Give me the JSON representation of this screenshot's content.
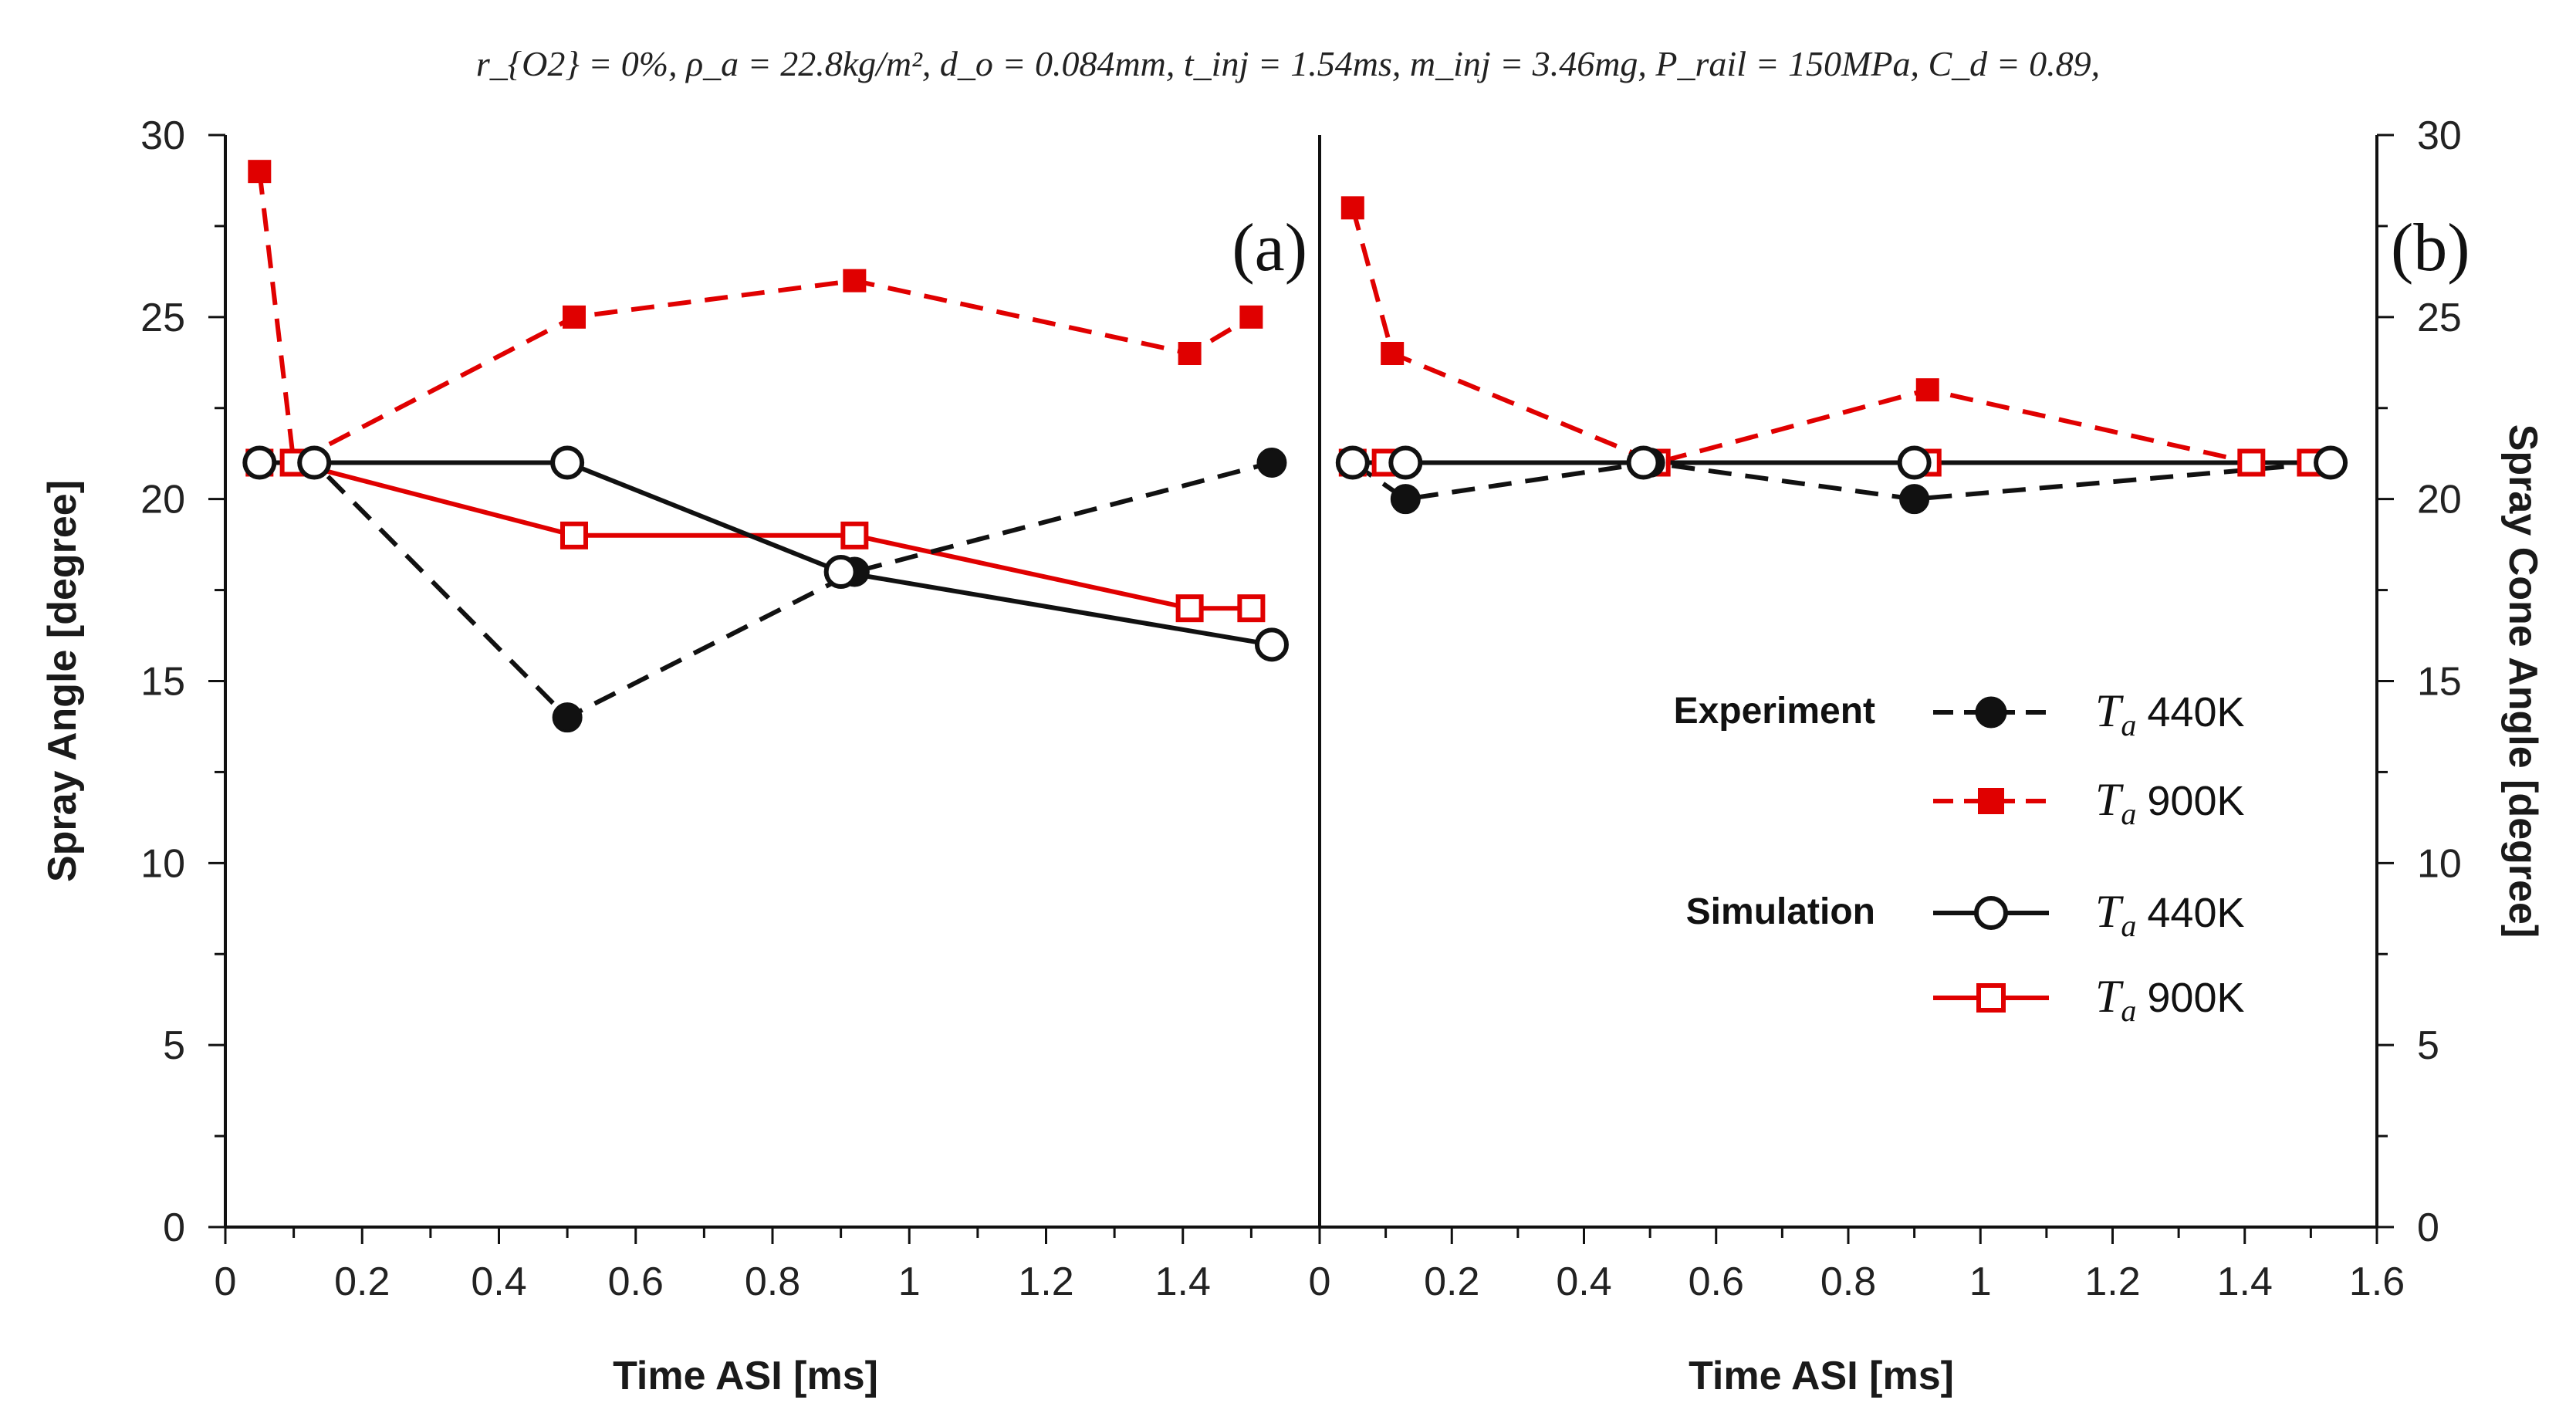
{
  "chart_data": {
    "type": "line",
    "caption": "r_{O2} = 0%, ρ_a = 22.8kg/m², d_o = 0.084mm, t_inj = 1.54ms, m_inj = 3.46mg, P_rail = 150MPa, C_d = 0.89,",
    "panels": [
      {
        "id": "a",
        "label": "(a)",
        "xlabel": "Time ASI [ms]",
        "ylabel": "Spray Angle [degree]",
        "xlim": [
          0,
          1.6
        ],
        "ylim": [
          0,
          30
        ],
        "xticks": [
          "0",
          "0.2",
          "0.4",
          "0.6",
          "0.8",
          "1",
          "1.2",
          "1.4"
        ],
        "yticks": [
          "0",
          "5",
          "10",
          "15",
          "20",
          "25",
          "30"
        ],
        "series": [
          {
            "key": "exp440",
            "name": "Experiment T_a 440K",
            "x": [
              0.05,
              0.13,
              0.5,
              0.92,
              1.53
            ],
            "y": [
              21,
              21,
              14,
              18,
              21
            ]
          },
          {
            "key": "exp900",
            "name": "Experiment T_a 900K",
            "x": [
              0.05,
              0.1,
              0.51,
              0.92,
              1.41,
              1.5
            ],
            "y": [
              29,
              21,
              25,
              26,
              24,
              25
            ]
          },
          {
            "key": "sim440",
            "name": "Simulation T_a 440K",
            "x": [
              0.05,
              0.13,
              0.5,
              0.9,
              1.53
            ],
            "y": [
              21,
              21,
              21,
              18,
              16
            ]
          },
          {
            "key": "sim900",
            "name": "Simulation T_a 900K",
            "x": [
              0.05,
              0.1,
              0.51,
              0.92,
              1.41,
              1.5
            ],
            "y": [
              21,
              21,
              19,
              19,
              17,
              17
            ]
          }
        ]
      },
      {
        "id": "b",
        "label": "(b)",
        "xlabel": "Time ASI [ms]",
        "ylabel": "Spray Cone Angle [degree]",
        "xlim": [
          0,
          1.6
        ],
        "ylim": [
          0,
          30
        ],
        "xticks": [
          "0",
          "0.2",
          "0.4",
          "0.6",
          "0.8",
          "1",
          "1.2",
          "1.4",
          "1.6"
        ],
        "yticks": [
          "0",
          "5",
          "10",
          "15",
          "20",
          "25",
          "30"
        ],
        "series": [
          {
            "key": "exp440",
            "name": "Experiment T_a 440K",
            "x": [
              0.05,
              0.13,
              0.5,
              0.9,
              1.53
            ],
            "y": [
              21,
              20,
              21,
              20,
              21
            ]
          },
          {
            "key": "exp900",
            "name": "Experiment T_a 900K",
            "x": [
              0.05,
              0.11,
              0.51,
              0.92,
              1.41,
              1.5
            ],
            "y": [
              28,
              24,
              21,
              23,
              21,
              21
            ]
          },
          {
            "key": "sim440",
            "name": "Simulation T_a 440K",
            "x": [
              0.05,
              0.13,
              0.49,
              0.9,
              1.53
            ],
            "y": [
              21,
              21,
              21,
              21,
              21
            ]
          },
          {
            "key": "sim900",
            "name": "Simulation T_a 900K",
            "x": [
              0.05,
              0.1,
              0.51,
              0.92,
              1.41,
              1.5
            ],
            "y": [
              21,
              21,
              21,
              21,
              21,
              21
            ]
          }
        ]
      }
    ],
    "legend": {
      "placement": "lower-right of panel (b)",
      "groups": [
        {
          "label": "Experiment",
          "entries": [
            {
              "series": "exp440",
              "symbol": "T",
              "sub": "a",
              "text": "440K"
            },
            {
              "series": "exp900",
              "symbol": "T",
              "sub": "a",
              "text": "900K"
            }
          ]
        },
        {
          "label": "Simulation",
          "entries": [
            {
              "series": "sim440",
              "symbol": "T",
              "sub": "a",
              "text": "440K"
            },
            {
              "series": "sim900",
              "symbol": "T",
              "sub": "a",
              "text": "900K"
            }
          ]
        }
      ]
    },
    "styles": {
      "exp440": {
        "color": "#111111",
        "dash": true,
        "marker": "circle",
        "filled": true
      },
      "exp900": {
        "color": "#e00000",
        "dash": true,
        "marker": "square",
        "filled": true
      },
      "sim440": {
        "color": "#111111",
        "dash": false,
        "marker": "circle",
        "filled": false
      },
      "sim900": {
        "color": "#e00000",
        "dash": false,
        "marker": "square",
        "filled": false
      }
    }
  }
}
